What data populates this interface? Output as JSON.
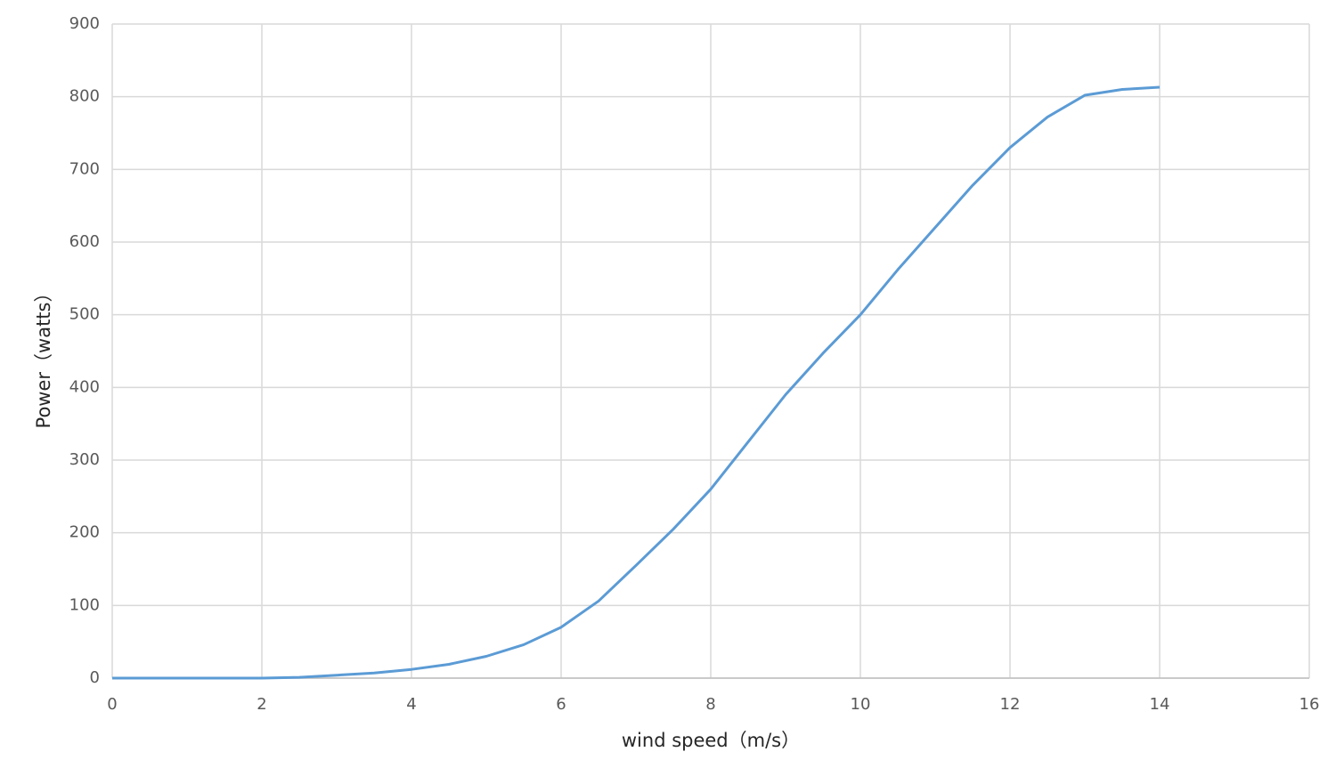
{
  "chart_data": {
    "type": "line",
    "x_label": "wind speed（m/s）",
    "y_label": "Power（watts）",
    "xlim": [
      0,
      16
    ],
    "xticks": [
      0,
      2,
      4,
      6,
      8,
      10,
      12,
      14,
      16
    ],
    "ylim": [
      0,
      900
    ],
    "yticks": [
      0,
      100,
      200,
      300,
      400,
      500,
      600,
      700,
      800,
      900
    ],
    "grid": true,
    "series": [
      {
        "name": "Power",
        "color": "#5b9bd5",
        "x": [
          0,
          0.5,
          1,
          1.5,
          2,
          2.5,
          3,
          3.5,
          4,
          4.5,
          5,
          5.5,
          6,
          6.5,
          7,
          7.5,
          8,
          8.5,
          9,
          9.5,
          10,
          10.5,
          11,
          11.5,
          12,
          12.5,
          13,
          13.5,
          14
        ],
        "values": [
          0,
          0,
          0,
          0,
          0,
          1,
          4,
          7,
          12,
          19,
          30,
          46,
          70,
          106,
          155,
          205,
          260,
          325,
          390,
          447,
          500,
          562,
          620,
          678,
          730,
          772,
          802,
          810,
          813
        ]
      }
    ]
  }
}
